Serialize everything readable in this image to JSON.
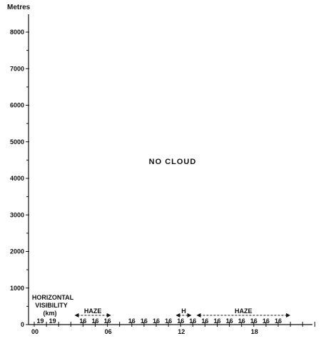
{
  "y_unit": "Metres",
  "y_ticks": [
    "0",
    "1000",
    "2000",
    "3000",
    "4000",
    "5000",
    "6000",
    "7000",
    "8000"
  ],
  "x_ticks": [
    "00",
    "06",
    "12",
    "18"
  ],
  "center_label": "NO CLOUD",
  "visibility_label": [
    "HORIZONTAL",
    "VISIBILITY",
    "(km)"
  ],
  "visibility_values": [
    {
      "hour": 0.5,
      "value": "19"
    },
    {
      "hour": 1.5,
      "value": "19"
    },
    {
      "hour": 4.0,
      "value": "16"
    },
    {
      "hour": 5.0,
      "value": "16"
    },
    {
      "hour": 6.0,
      "value": "16"
    },
    {
      "hour": 8.0,
      "value": "16"
    },
    {
      "hour": 9.0,
      "value": "16"
    },
    {
      "hour": 10.0,
      "value": "16"
    },
    {
      "hour": 11.0,
      "value": "16"
    },
    {
      "hour": 12.0,
      "value": "16"
    },
    {
      "hour": 13.0,
      "value": "16"
    },
    {
      "hour": 14.0,
      "value": "16"
    },
    {
      "hour": 15.0,
      "value": "16"
    },
    {
      "hour": 16.0,
      "value": "16"
    },
    {
      "hour": 17.0,
      "value": "16"
    },
    {
      "hour": 18.0,
      "value": "16"
    },
    {
      "hour": 19.0,
      "value": "16"
    },
    {
      "hour": 20.0,
      "value": "16"
    }
  ],
  "weather_spans": [
    {
      "label": "HAZE",
      "start_hour": 3.3,
      "end_hour": 6.3,
      "style": "dashed"
    },
    {
      "label": "H",
      "start_hour": 11.6,
      "end_hour": 12.9,
      "style": "dashed"
    },
    {
      "label": "HAZE",
      "start_hour": 13.3,
      "end_hour": 21.0,
      "style": "dashed"
    }
  ]
}
